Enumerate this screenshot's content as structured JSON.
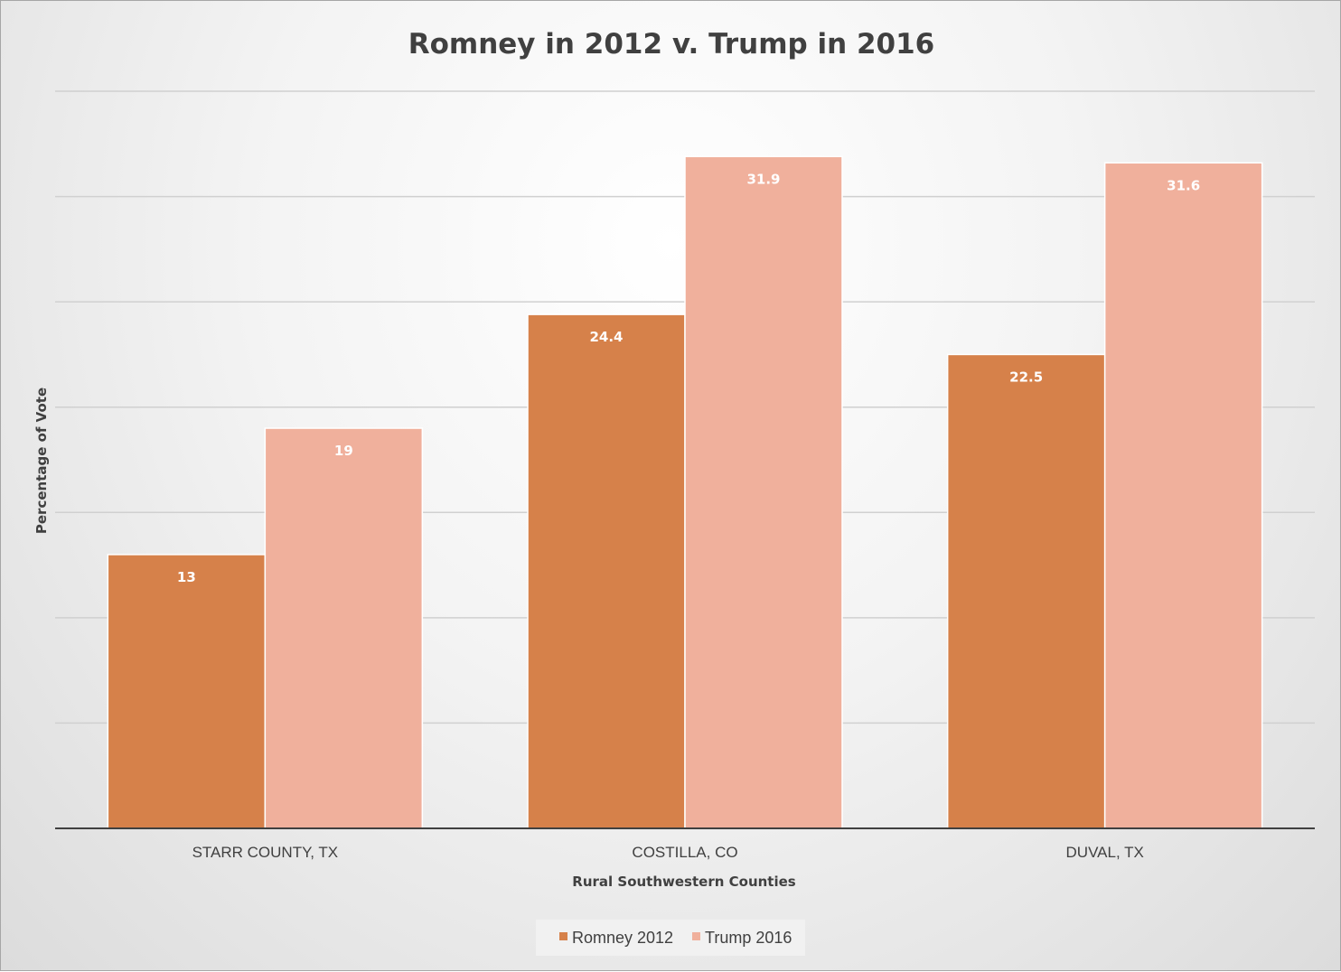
{
  "chart_data": {
    "type": "bar",
    "title": "Romney in 2012 v. Trump in 2016",
    "xlabel": "Rural Southwestern Counties",
    "ylabel": "Percentage of Vote",
    "categories": [
      "STARR COUNTY, TX",
      "COSTILLA, CO",
      "DUVAL, TX"
    ],
    "series": [
      {
        "name": "Romney 2012",
        "values": [
          13,
          24.4,
          22.5
        ],
        "color": "#D6814A"
      },
      {
        "name": "Trump 2016",
        "values": [
          19,
          31.9,
          31.6
        ],
        "color": "#F0B09C"
      }
    ],
    "ylim": [
      0,
      35
    ],
    "grid": true,
    "legend_position": "bottom",
    "data_labels": true
  }
}
